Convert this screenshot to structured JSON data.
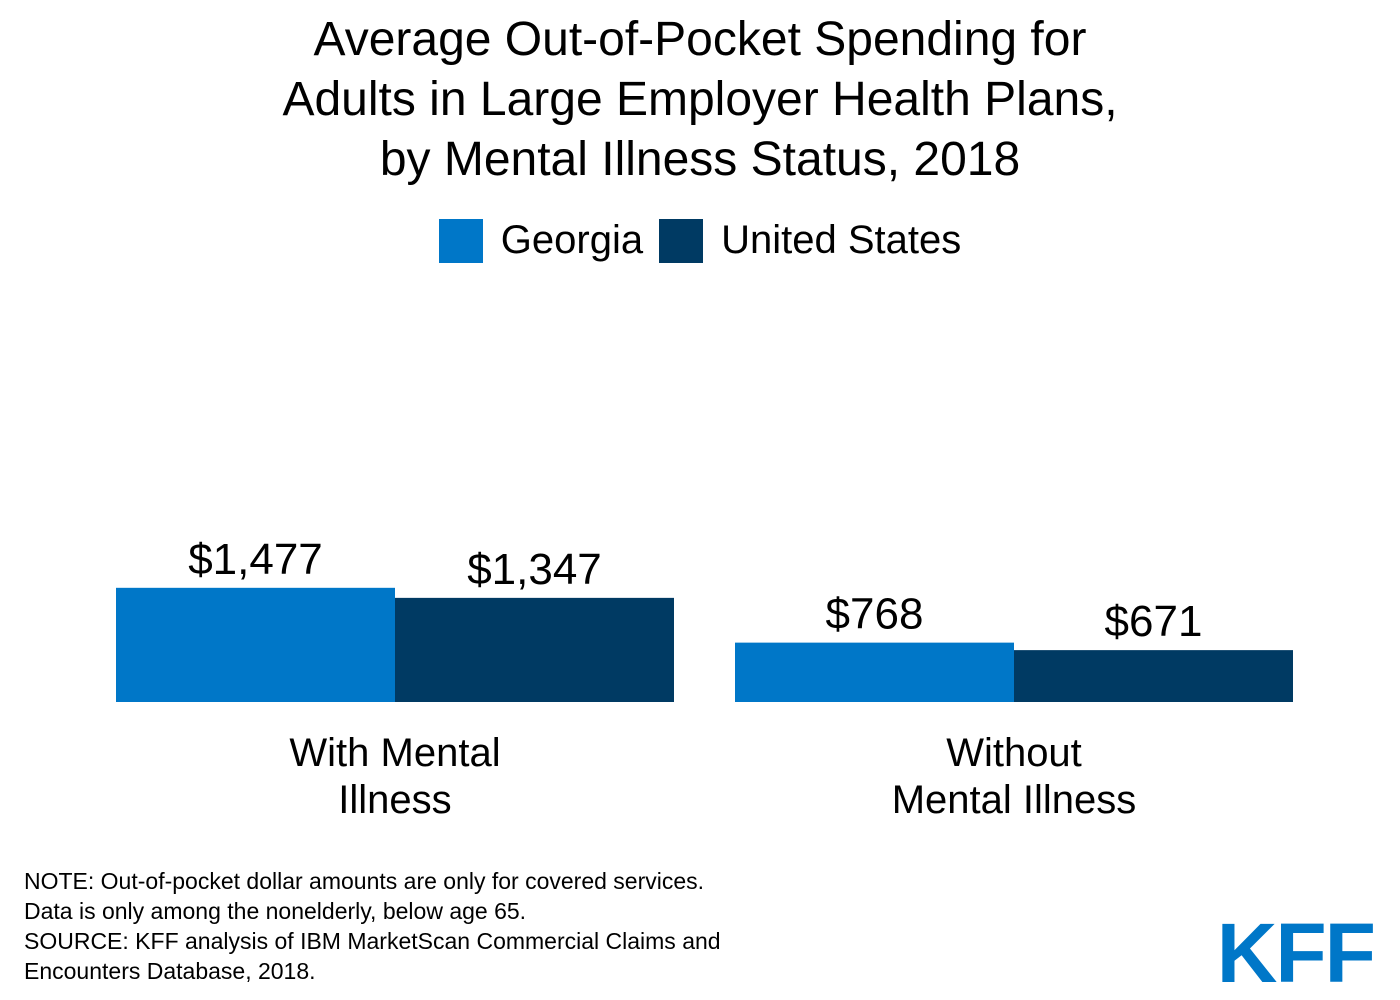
{
  "title_lines": [
    "Average Out-of-Pocket Spending for",
    "Adults in Large Employer Health Plans,",
    "by Mental Illness Status, 2018"
  ],
  "colors": {
    "georgia": "#0077c8",
    "united_states": "#003a63"
  },
  "chart_data": {
    "type": "bar",
    "title": "Average Out-of-Pocket Spending for Adults in Large Employer Health Plans, by Mental Illness Status, 2018",
    "categories": [
      [
        "With Mental",
        "Illness"
      ],
      [
        "Without",
        "Mental Illness"
      ]
    ],
    "series": [
      {
        "name": "Georgia",
        "values": [
          1477,
          768
        ],
        "labels": [
          "$1,477",
          "$768"
        ]
      },
      {
        "name": "United States",
        "values": [
          1347,
          671
        ],
        "labels": [
          "$1,347",
          "$671"
        ]
      }
    ],
    "xlabel": "",
    "ylabel": "",
    "ylim": [
      0,
      5200
    ],
    "grid": false,
    "legend_position": "top-center"
  },
  "notes": [
    "NOTE: Out-of-pocket dollar amounts are only for covered services.",
    "Data is only among the nonelderly, below age 65.",
    "SOURCE: KFF analysis of IBM MarketScan Commercial Claims and",
    "Encounters Database, 2018."
  ],
  "logo": "KFF"
}
